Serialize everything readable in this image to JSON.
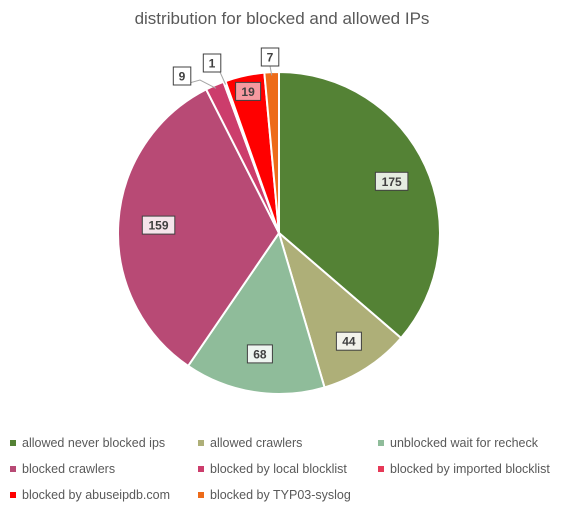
{
  "chart_data": {
    "type": "pie",
    "title": "distribution for blocked and allowed IPs",
    "legend_position": "bottom",
    "categories": [
      "allowed never blocked ips",
      "allowed crawlers",
      "unblocked wait for recheck",
      "blocked crawlers",
      "blocked by local blocklist",
      "blocked by imported blocklist",
      "blocked by abuseipdb.com",
      "blocked by TYP03-syslog"
    ],
    "values": [
      175,
      44,
      68,
      159,
      9,
      1,
      19,
      7
    ],
    "colors": [
      "#548235",
      "#aeaf78",
      "#8fbc9a",
      "#b84a75",
      "#cc3d6c",
      "#e63957",
      "#ff0000",
      "#ed6b1a"
    ]
  }
}
